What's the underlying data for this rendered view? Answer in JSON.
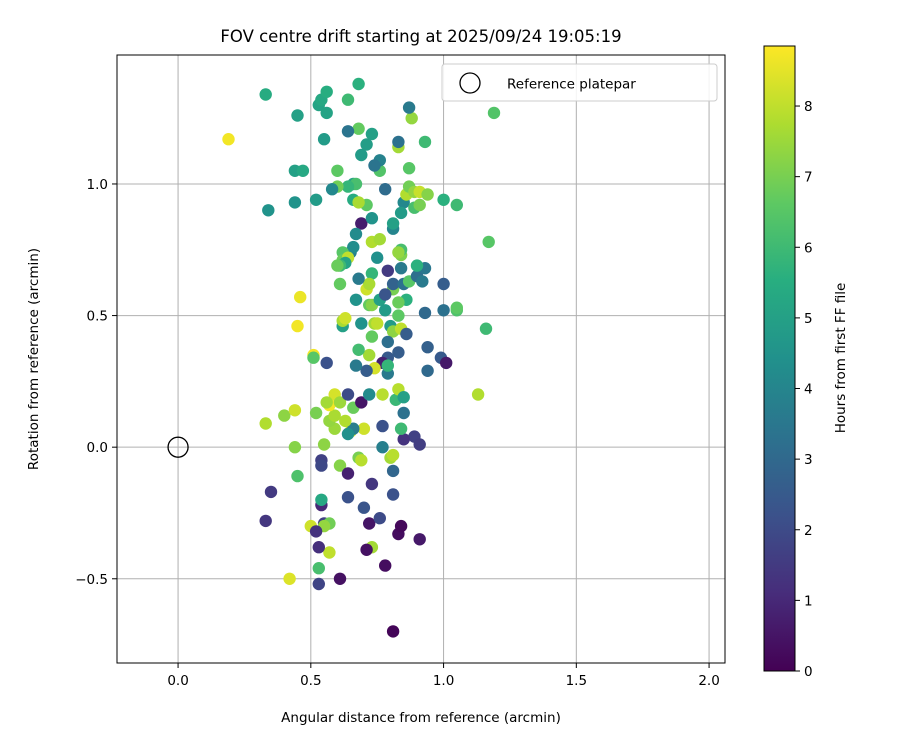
{
  "chart_data": {
    "type": "scatter",
    "title": "FOV centre drift starting at 2025/09/24 19:05:19",
    "xlabel": "Angular distance from reference (arcmin)",
    "ylabel": "Rotation from reference (arcmin)",
    "xlim": [
      -0.23,
      2.06
    ],
    "ylim": [
      -0.82,
      1.49
    ],
    "xticks": [
      0.0,
      0.5,
      1.0,
      1.5,
      2.0
    ],
    "xtick_labels": [
      "0.0",
      "0.5",
      "1.0",
      "1.5",
      "2.0"
    ],
    "yticks": [
      -0.5,
      0.0,
      0.5,
      1.0
    ],
    "ytick_labels": [
      "−0.5",
      "0.0",
      "0.5",
      "1.0"
    ],
    "grid": true,
    "legend": {
      "location": "top-right",
      "entries": [
        "Reference platepar"
      ]
    },
    "reference_point": {
      "x": 0.0,
      "y": 0.0,
      "label": "Reference platepar"
    },
    "colorbar": {
      "label": "Hours from first FF file",
      "colormap": "viridis",
      "range": [
        0,
        8.85
      ],
      "ticks": [
        0,
        1,
        2,
        3,
        4,
        5,
        6,
        7,
        8
      ],
      "tick_labels": [
        "0",
        "1",
        "2",
        "3",
        "4",
        "5",
        "6",
        "7",
        "8"
      ]
    },
    "series": [
      {
        "name": "FOV centre",
        "points": [
          [
            0.81,
            -0.7,
            0.1
          ],
          [
            0.78,
            -0.45,
            0.3
          ],
          [
            0.61,
            -0.5,
            0.4
          ],
          [
            0.53,
            -0.52,
            1.8
          ],
          [
            0.42,
            -0.5,
            8.4
          ],
          [
            0.53,
            -0.46,
            6.2
          ],
          [
            0.57,
            -0.4,
            8.0
          ],
          [
            0.73,
            -0.38,
            7.6
          ],
          [
            0.71,
            -0.39,
            0.4
          ],
          [
            0.83,
            -0.33,
            0.3
          ],
          [
            0.84,
            -0.3,
            0.2
          ],
          [
            0.91,
            -0.35,
            0.6
          ],
          [
            0.72,
            -0.29,
            0.5
          ],
          [
            0.76,
            -0.27,
            2.0
          ],
          [
            0.7,
            -0.23,
            2.3
          ],
          [
            0.81,
            -0.18,
            2.2
          ],
          [
            0.64,
            -0.19,
            2.2
          ],
          [
            0.73,
            -0.14,
            1.4
          ],
          [
            0.54,
            -0.22,
            1.0
          ],
          [
            0.54,
            -0.2,
            5.3
          ],
          [
            0.55,
            -0.29,
            1.7
          ],
          [
            0.57,
            -0.29,
            6.9
          ],
          [
            0.55,
            -0.3,
            7.4
          ],
          [
            0.5,
            -0.3,
            8.2
          ],
          [
            0.52,
            -0.32,
            1.3
          ],
          [
            0.53,
            -0.38,
            1.2
          ],
          [
            0.33,
            -0.28,
            1.4
          ],
          [
            0.35,
            -0.17,
            1.5
          ],
          [
            0.45,
            -0.11,
            6.3
          ],
          [
            0.44,
            0.0,
            7.2
          ],
          [
            0.33,
            0.09,
            7.8
          ],
          [
            0.4,
            0.12,
            7.3
          ],
          [
            0.44,
            0.14,
            8.2
          ],
          [
            0.52,
            0.13,
            7.0
          ],
          [
            0.54,
            -0.05,
            1.7
          ],
          [
            0.54,
            -0.07,
            1.9
          ],
          [
            0.61,
            -0.07,
            7.2
          ],
          [
            0.64,
            -0.1,
            0.8
          ],
          [
            0.68,
            -0.04,
            7.0
          ],
          [
            0.69,
            -0.05,
            7.9
          ],
          [
            0.8,
            -0.04,
            7.6
          ],
          [
            0.81,
            -0.03,
            7.9
          ],
          [
            0.77,
            0.0,
            3.8
          ],
          [
            0.81,
            -0.09,
            2.9
          ],
          [
            0.89,
            0.04,
            1.7
          ],
          [
            0.91,
            0.01,
            1.6
          ],
          [
            0.85,
            0.03,
            1.3
          ],
          [
            0.84,
            0.07,
            6.0
          ],
          [
            0.77,
            0.08,
            2.2
          ],
          [
            0.7,
            0.07,
            8.2
          ],
          [
            0.65,
            0.06,
            8.0
          ],
          [
            0.66,
            0.07,
            3.7
          ],
          [
            0.64,
            0.05,
            4.4
          ],
          [
            0.59,
            0.07,
            7.5
          ],
          [
            0.55,
            0.01,
            7.3
          ],
          [
            0.57,
            0.1,
            7.4
          ],
          [
            0.59,
            0.12,
            7.7
          ],
          [
            0.57,
            0.16,
            8.7
          ],
          [
            0.59,
            0.2,
            8.3
          ],
          [
            0.61,
            0.17,
            7.5
          ],
          [
            0.63,
            0.1,
            7.8
          ],
          [
            0.66,
            0.15,
            6.8
          ],
          [
            0.69,
            0.17,
            0.5
          ],
          [
            0.72,
            0.2,
            4.2
          ],
          [
            0.77,
            0.2,
            7.9
          ],
          [
            0.82,
            0.18,
            5.9
          ],
          [
            0.83,
            0.22,
            7.9
          ],
          [
            0.85,
            0.19,
            5.0
          ],
          [
            0.85,
            0.13,
            3.3
          ],
          [
            0.64,
            0.2,
            2.0
          ],
          [
            0.56,
            0.17,
            7.6
          ],
          [
            0.56,
            0.32,
            2.2
          ],
          [
            0.51,
            0.35,
            8.7
          ],
          [
            0.45,
            0.46,
            8.7
          ],
          [
            0.46,
            0.57,
            8.6
          ],
          [
            0.51,
            0.34,
            6.5
          ],
          [
            0.62,
            0.46,
            5.0
          ],
          [
            0.62,
            0.48,
            7.7
          ],
          [
            0.63,
            0.49,
            8.2
          ],
          [
            0.67,
            0.56,
            4.5
          ],
          [
            0.69,
            0.47,
            4.5
          ],
          [
            0.72,
            0.54,
            6.7
          ],
          [
            0.73,
            0.54,
            7.2
          ],
          [
            0.74,
            0.47,
            7.6
          ],
          [
            0.75,
            0.47,
            8.0
          ],
          [
            0.76,
            0.56,
            5.0
          ],
          [
            0.78,
            0.52,
            4.8
          ],
          [
            0.8,
            0.46,
            4.8
          ],
          [
            0.81,
            0.44,
            7.3
          ],
          [
            0.84,
            0.45,
            8.0
          ],
          [
            0.83,
            0.5,
            6.6
          ],
          [
            0.86,
            0.43,
            2.6
          ],
          [
            0.86,
            0.56,
            5.6
          ],
          [
            0.81,
            0.6,
            7.0
          ],
          [
            0.81,
            0.62,
            2.8
          ],
          [
            0.79,
            0.67,
            1.5
          ],
          [
            0.78,
            0.58,
            2.3
          ],
          [
            0.79,
            0.4,
            3.2
          ],
          [
            0.79,
            0.34,
            2.5
          ],
          [
            0.77,
            0.32,
            0.8
          ],
          [
            0.79,
            0.28,
            3.6
          ],
          [
            0.79,
            0.31,
            5.8
          ],
          [
            0.72,
            0.35,
            7.6
          ],
          [
            0.74,
            0.3,
            8.3
          ],
          [
            0.71,
            0.29,
            2.6
          ],
          [
            0.67,
            0.31,
            3.6
          ],
          [
            0.68,
            0.37,
            6.1
          ],
          [
            0.73,
            0.42,
            6.7
          ],
          [
            0.83,
            0.36,
            2.6
          ],
          [
            0.83,
            0.55,
            6.8
          ],
          [
            0.85,
            0.62,
            3.3
          ],
          [
            0.87,
            0.63,
            6.5
          ],
          [
            0.9,
            0.65,
            3.2
          ],
          [
            0.92,
            0.63,
            3.6
          ],
          [
            0.93,
            0.51,
            3.0
          ],
          [
            0.94,
            0.38,
            2.7
          ],
          [
            0.94,
            0.29,
            3.0
          ],
          [
            0.99,
            0.34,
            2.5
          ],
          [
            1.01,
            0.32,
            0.6
          ],
          [
            1.0,
            0.52,
            3.3
          ],
          [
            1.05,
            0.52,
            6.3
          ],
          [
            1.05,
            0.53,
            6.6
          ],
          [
            1.13,
            0.2,
            7.8
          ],
          [
            1.16,
            0.45,
            6.0
          ],
          [
            1.0,
            0.62,
            2.6
          ],
          [
            0.93,
            0.68,
            3.5
          ],
          [
            0.9,
            0.69,
            5.6
          ],
          [
            0.84,
            0.68,
            3.6
          ],
          [
            0.84,
            0.73,
            7.1
          ],
          [
            0.84,
            0.75,
            6.2
          ],
          [
            0.83,
            0.74,
            7.4
          ],
          [
            0.75,
            0.72,
            4.4
          ],
          [
            0.73,
            0.66,
            5.8
          ],
          [
            0.73,
            0.78,
            7.8
          ],
          [
            0.76,
            0.79,
            7.6
          ],
          [
            0.71,
            0.6,
            8.2
          ],
          [
            0.72,
            0.62,
            7.7
          ],
          [
            0.68,
            0.64,
            3.6
          ],
          [
            0.65,
            0.74,
            3.8
          ],
          [
            0.66,
            0.76,
            4.3
          ],
          [
            0.62,
            0.74,
            6.5
          ],
          [
            0.62,
            0.71,
            6.8
          ],
          [
            0.64,
            0.72,
            8.0
          ],
          [
            0.63,
            0.7,
            5.1
          ],
          [
            0.61,
            0.69,
            6.0
          ],
          [
            0.6,
            0.69,
            6.8
          ],
          [
            0.61,
            0.62,
            6.7
          ],
          [
            0.69,
            0.85,
            0.7
          ],
          [
            0.67,
            0.81,
            4.2
          ],
          [
            0.73,
            0.87,
            4.5
          ],
          [
            0.81,
            0.83,
            4.0
          ],
          [
            0.81,
            0.85,
            5.0
          ],
          [
            0.85,
            0.93,
            4.1
          ],
          [
            0.84,
            0.89,
            4.8
          ],
          [
            0.89,
            0.91,
            6.2
          ],
          [
            0.91,
            0.92,
            7.0
          ],
          [
            0.86,
            0.96,
            7.8
          ],
          [
            0.87,
            0.99,
            6.9
          ],
          [
            0.89,
            0.97,
            7.4
          ],
          [
            0.91,
            0.97,
            8.1
          ],
          [
            0.94,
            0.96,
            7.2
          ],
          [
            1.0,
            0.94,
            5.6
          ],
          [
            1.05,
            0.92,
            6.0
          ],
          [
            1.17,
            0.78,
            6.5
          ],
          [
            0.71,
            0.92,
            6.6
          ],
          [
            0.66,
            0.94,
            5.4
          ],
          [
            0.68,
            0.93,
            7.7
          ],
          [
            0.66,
            1.0,
            5.0
          ],
          [
            0.67,
            1.0,
            6.2
          ],
          [
            0.64,
            0.99,
            5.8
          ],
          [
            0.6,
            0.99,
            6.9
          ],
          [
            0.58,
            0.98,
            4.1
          ],
          [
            0.52,
            0.94,
            4.8
          ],
          [
            0.44,
            0.93,
            4.5
          ],
          [
            0.34,
            0.9,
            4.5
          ],
          [
            0.44,
            1.05,
            5.0
          ],
          [
            0.47,
            1.05,
            5.3
          ],
          [
            0.6,
            1.05,
            6.6
          ],
          [
            0.76,
            1.05,
            6.4
          ],
          [
            0.76,
            1.09,
            3.9
          ],
          [
            0.74,
            1.07,
            3.4
          ],
          [
            0.78,
            0.98,
            3.1
          ],
          [
            0.69,
            1.11,
            4.8
          ],
          [
            0.71,
            1.15,
            4.9
          ],
          [
            0.83,
            1.14,
            7.6
          ],
          [
            0.83,
            1.16,
            3.3
          ],
          [
            0.87,
            1.06,
            6.5
          ],
          [
            0.93,
            1.16,
            6.0
          ],
          [
            1.19,
            1.27,
            6.4
          ],
          [
            0.88,
            1.25,
            7.4
          ],
          [
            0.87,
            1.29,
            3.6
          ],
          [
            0.73,
            1.19,
            5.0
          ],
          [
            0.68,
            1.21,
            6.7
          ],
          [
            0.64,
            1.2,
            3.4
          ],
          [
            0.55,
            1.17,
            4.8
          ],
          [
            0.56,
            1.27,
            5.1
          ],
          [
            0.53,
            1.3,
            5.1
          ],
          [
            0.54,
            1.32,
            5.3
          ],
          [
            0.56,
            1.35,
            5.5
          ],
          [
            0.64,
            1.32,
            6.0
          ],
          [
            0.68,
            1.38,
            5.6
          ],
          [
            0.45,
            1.26,
            5.0
          ],
          [
            0.33,
            1.34,
            5.4
          ],
          [
            0.19,
            1.17,
            8.7
          ]
        ]
      }
    ]
  }
}
